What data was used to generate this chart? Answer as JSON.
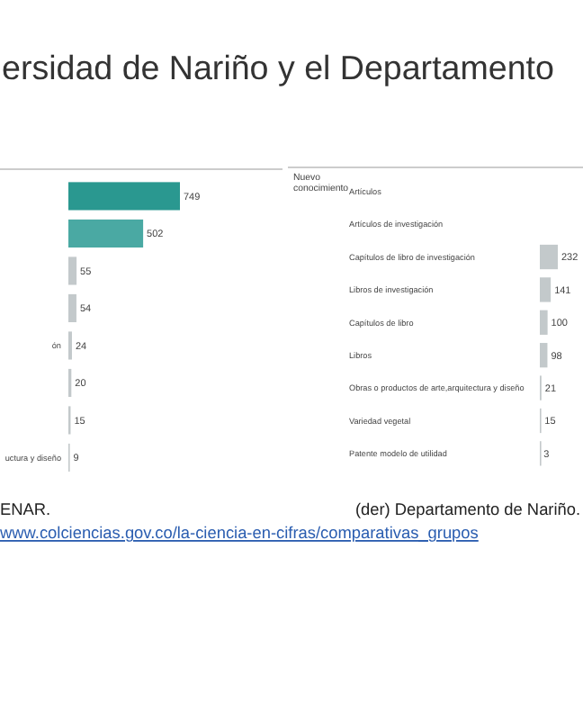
{
  "chart_data": [
    {
      "type": "bar",
      "orientation": "horizontal",
      "title": "ersidad de Nariño y el Departamento",
      "categories": [
        null,
        null,
        null,
        null,
        "ón",
        null,
        null,
        "uctura y diseño"
      ],
      "values": [
        749,
        502,
        55,
        54,
        24,
        20,
        15,
        9
      ],
      "colors": [
        "#2a9890",
        "#4aa9a3",
        "#c3c9cb",
        "#c3c9cb",
        "#c3c9cb",
        "#c3c9cb",
        "#c3c9cb",
        "#c3c9cb"
      ],
      "data_labels": true,
      "annotations": [
        "ENAR."
      ]
    },
    {
      "type": "bar",
      "orientation": "horizontal",
      "categories": [
        "Artículos",
        "Artículos de investigación",
        "Capítulos de libro de investigación",
        "Libros de investigación",
        "Capítulos de libro",
        "Libros",
        "Obras o productos de arte,arquitectura y diseño",
        "Variedad vegetal",
        "Patente modelo de utilidad"
      ],
      "values": [
        null,
        null,
        232,
        141,
        100,
        98,
        21,
        15,
        3
      ],
      "colors": [
        null,
        null,
        "#c3c9cb",
        "#c3c9cb",
        "#c3c9cb",
        "#c3c9cb",
        "#c3c9cb",
        "#c3c9cb",
        "#c3c9cb"
      ],
      "data_labels": true,
      "ylabel": "Nuevo conocimiento",
      "annotations": [
        "(der) Departamento de Nariño.",
        "www.colciencias.gov.co/la-ciencia-en-cifras/comparativas_grupos"
      ]
    }
  ]
}
